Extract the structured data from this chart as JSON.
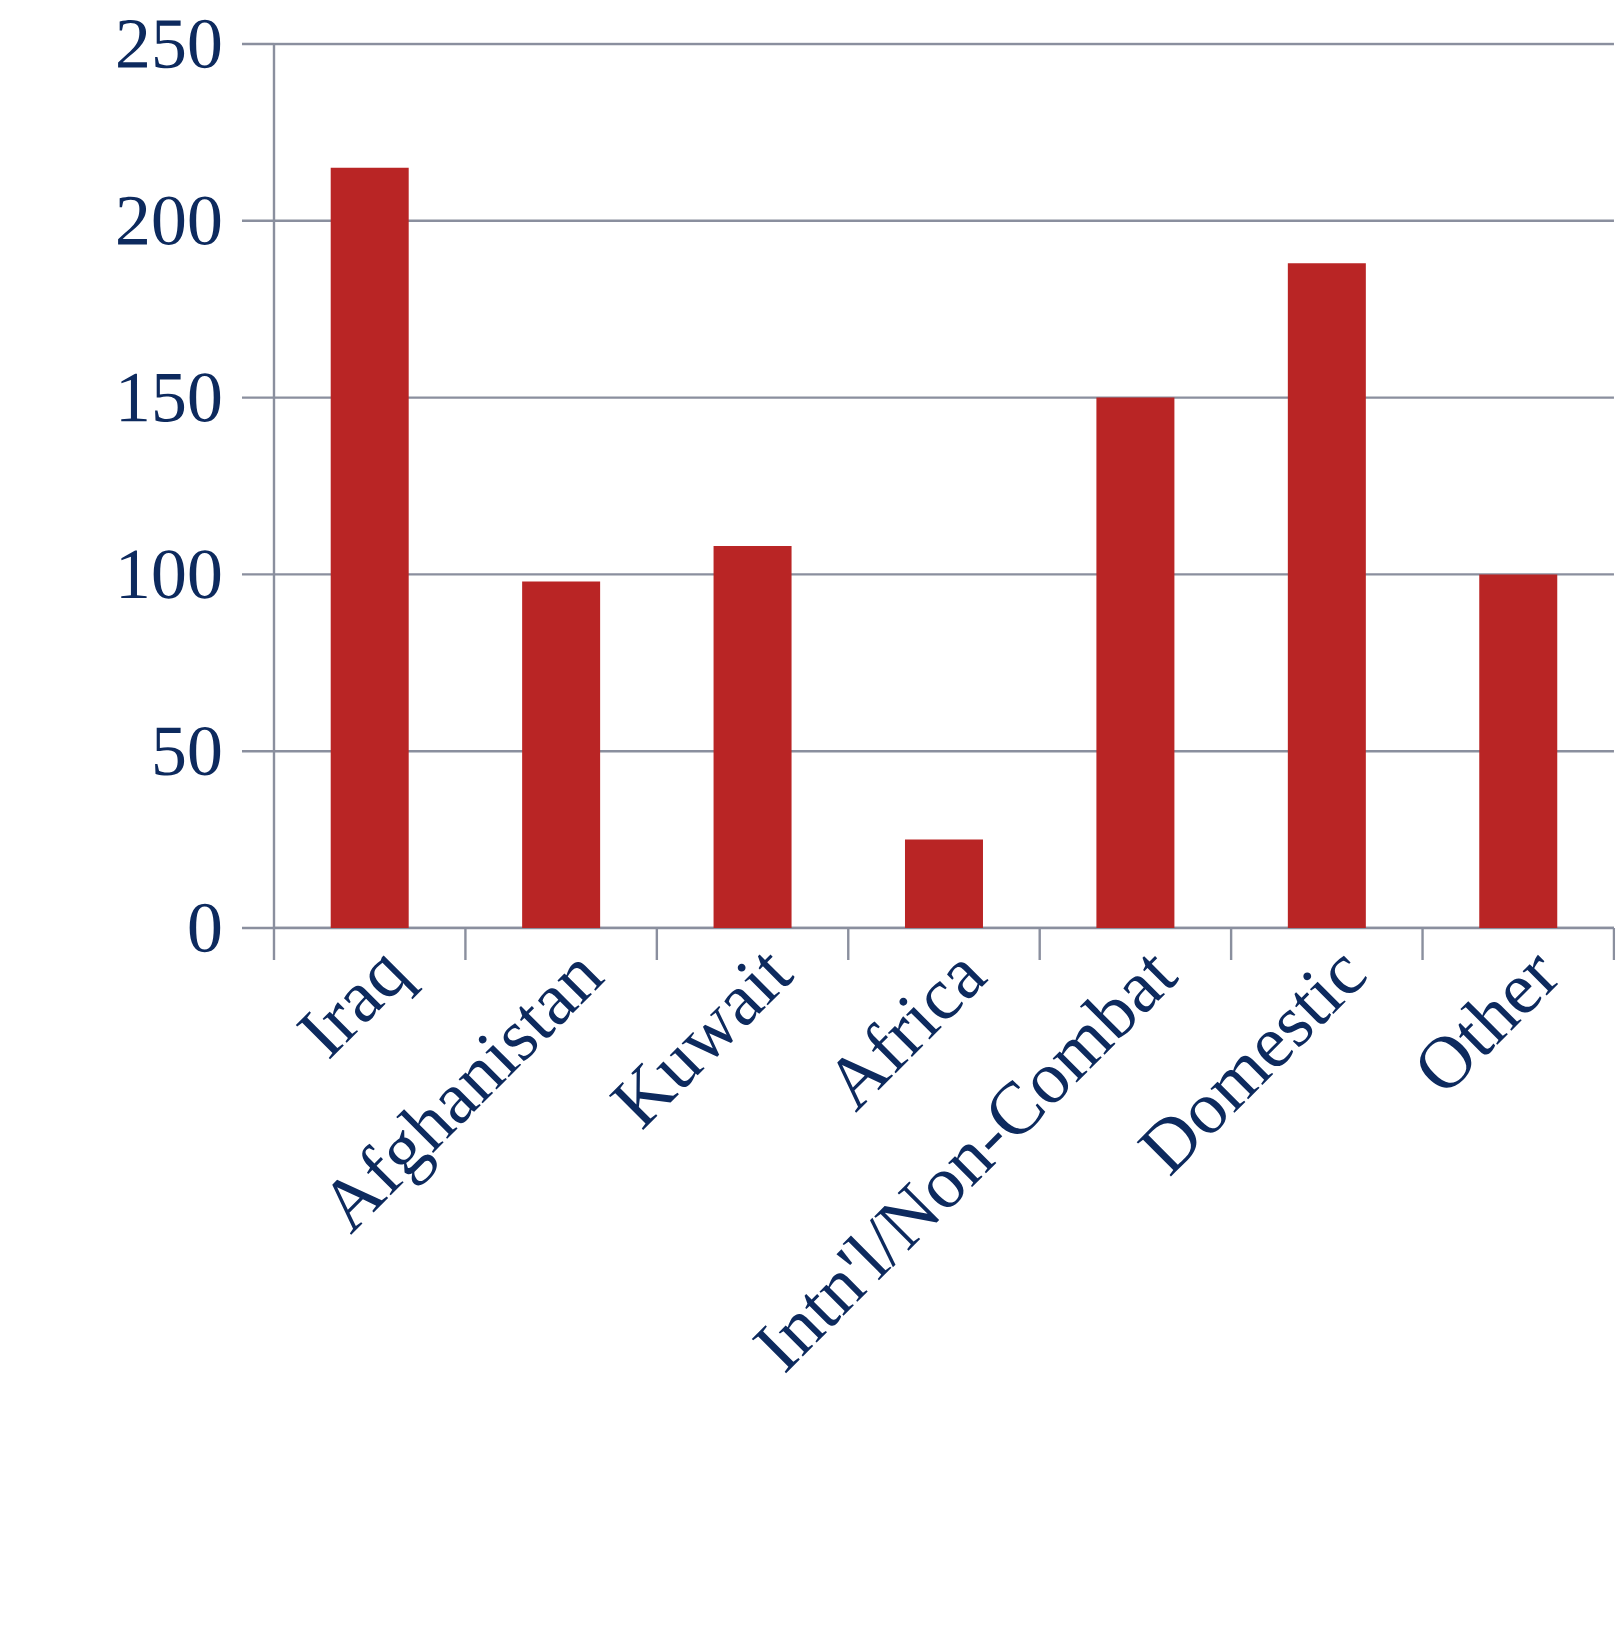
{
  "chart_data": {
    "type": "bar",
    "categories": [
      "Iraq",
      "Afghanistan",
      "Kuwait",
      "Africa",
      "Intn'l/Non-Combat",
      "Domestic",
      "Other"
    ],
    "values": [
      215,
      98,
      108,
      25,
      150,
      188,
      100
    ],
    "color": "#b92525",
    "ylim": [
      0,
      250
    ],
    "yticks": [
      0,
      50,
      100,
      150,
      200,
      250
    ],
    "grid": "y"
  }
}
